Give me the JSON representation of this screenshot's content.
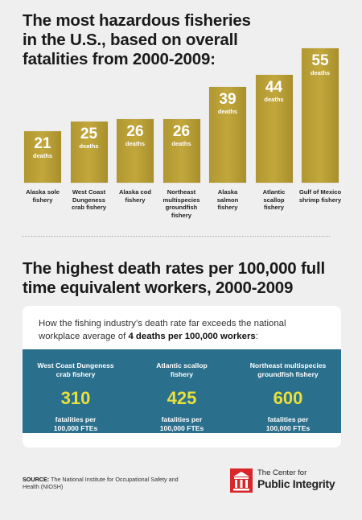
{
  "title": "The most hazardous fisheries in the U.S., based on overall fatalities from 2000-2009:",
  "chart_data": {
    "type": "bar",
    "title": "The most hazardous fisheries in the U.S., based on overall fatalities from 2000-2009:",
    "categories": [
      "Alaska sole fishery",
      "West Coast Dungeness crab fishery",
      "Alaska cod fishery",
      "Northeast multispecies groundfish fishery",
      "Alaska salmon fishery",
      "Atlantic scallop fishery",
      "Gulf of Mexico shrimp fishery"
    ],
    "category_display": [
      "Alaska sole\nfishery",
      "West Coast\nDungeness\ncrab fishery",
      "Alaska cod\nfishery",
      "Northeast\nmultispecies\ngroundfish\nfishery",
      "Alaska\nsalmon\nfishery",
      "Atlantic\nscallop\nfishery",
      "Gulf of Mexico\nshrimp fishery"
    ],
    "values": [
      21,
      25,
      26,
      26,
      39,
      44,
      55
    ],
    "unit_label": "deaths",
    "bar_color": "#b99f36"
  },
  "rates": {
    "title": "The highest death rates per 100,000 full time equivalent workers, 2000-2009",
    "intro_before": "How the fishing industry’s death rate far exceeds the national workplace average of ",
    "intro_bold": "4 deaths per 100,000 workers",
    "intro_after": ":",
    "items": [
      {
        "name": "West Coast Dungeness crab fishery",
        "value": "310",
        "unit": "fatalities per 100,000 FTEs"
      },
      {
        "name": "Atlantic scallop fishery",
        "value": "425",
        "unit": "fatalities per 100,000 FTEs"
      },
      {
        "name": "Northeast multispecies groundfish fishery",
        "value": "600",
        "unit": "fatalities per 100,000 FTEs"
      }
    ],
    "panel_color": "#2a6f8c",
    "value_color": "#e9e03a"
  },
  "source": {
    "label": "SOURCE:",
    "text": " The National Institute for Occupational Safety and Health (NIOSH)"
  },
  "logo": {
    "line1": "The Center for",
    "line2": "Public Integrity",
    "icon": "pillar-building-icon",
    "color": "#d9262a"
  }
}
